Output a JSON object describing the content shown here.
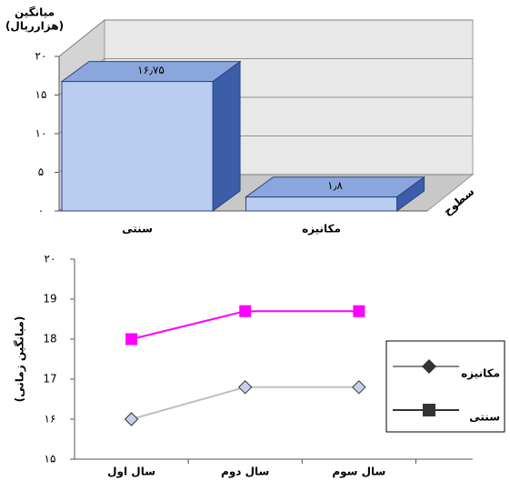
{
  "chart_data": [
    {
      "type": "bar3d",
      "y_label_lines": [
        "میانگین",
        "(هزارریال)"
      ],
      "x_label": "سطوح",
      "categories": [
        "سنتی",
        "مکانیزه"
      ],
      "values": [
        16.75,
        1.8
      ],
      "value_labels": [
        "۱۶٫۷۵",
        "۱٫۸"
      ],
      "color": "#b8cdf0",
      "ylim": [
        0,
        20
      ],
      "yticks": [
        {
          "value": 0,
          "label": "۰"
        },
        {
          "value": 5,
          "label": "۵"
        },
        {
          "value": 10,
          "label": "۱۰"
        },
        {
          "value": 15,
          "label": "۱۵"
        },
        {
          "value": 20,
          "label": "۲۰"
        }
      ],
      "grid": true
    },
    {
      "type": "line",
      "y_label": "(میانگین زمانی)",
      "categories": [
        "سال اول",
        "سال دوم",
        "سال سوم"
      ],
      "series": [
        {
          "name": "مکانیزه",
          "color": "#c0c0c0",
          "marker": "diamond",
          "values": [
            16,
            16.8,
            16.8
          ]
        },
        {
          "name": "سنتی",
          "color": "#ff00ff",
          "marker": "square",
          "values": [
            18,
            18.7,
            18.7
          ]
        }
      ],
      "ylim": [
        15,
        20
      ],
      "yticks": [
        {
          "value": 15,
          "label": "۱۵"
        },
        {
          "value": 16,
          "label": "۱۶"
        },
        17,
        18,
        19,
        {
          "value": 20,
          "label": "۲۰"
        }
      ],
      "legend": "right"
    }
  ]
}
